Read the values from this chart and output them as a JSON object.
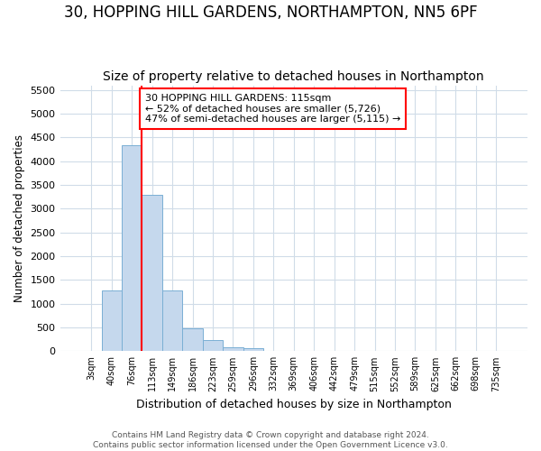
{
  "title": "30, HOPPING HILL GARDENS, NORTHAMPTON, NN5 6PF",
  "subtitle": "Size of property relative to detached houses in Northampton",
  "xlabel": "Distribution of detached houses by size in Northampton",
  "ylabel": "Number of detached properties",
  "footer_line1": "Contains HM Land Registry data © Crown copyright and database right 2024.",
  "footer_line2": "Contains public sector information licensed under the Open Government Licence v3.0.",
  "bar_labels": [
    "3sqm",
    "40sqm",
    "76sqm",
    "113sqm",
    "149sqm",
    "186sqm",
    "223sqm",
    "259sqm",
    "296sqm",
    "332sqm",
    "369sqm",
    "406sqm",
    "442sqm",
    "479sqm",
    "515sqm",
    "552sqm",
    "589sqm",
    "625sqm",
    "662sqm",
    "698sqm",
    "735sqm"
  ],
  "bar_values": [
    0,
    1280,
    4340,
    3300,
    1280,
    490,
    230,
    90,
    60,
    0,
    0,
    0,
    0,
    0,
    0,
    0,
    0,
    0,
    0,
    0,
    0
  ],
  "bar_color": "#c5d8ed",
  "bar_edge_color": "#7aafd4",
  "red_line_index": 3,
  "annotation_line1": "30 HOPPING HILL GARDENS: 115sqm",
  "annotation_line2": "← 52% of detached houses are smaller (5,726)",
  "annotation_line3": "47% of semi-detached houses are larger (5,115) →",
  "ylim": [
    0,
    5600
  ],
  "yticks": [
    0,
    500,
    1000,
    1500,
    2000,
    2500,
    3000,
    3500,
    4000,
    4500,
    5000,
    5500
  ],
  "background_color": "#ffffff",
  "plot_bg_color": "#ffffff",
  "grid_color": "#d0dce8",
  "title_fontsize": 12,
  "subtitle_fontsize": 10
}
